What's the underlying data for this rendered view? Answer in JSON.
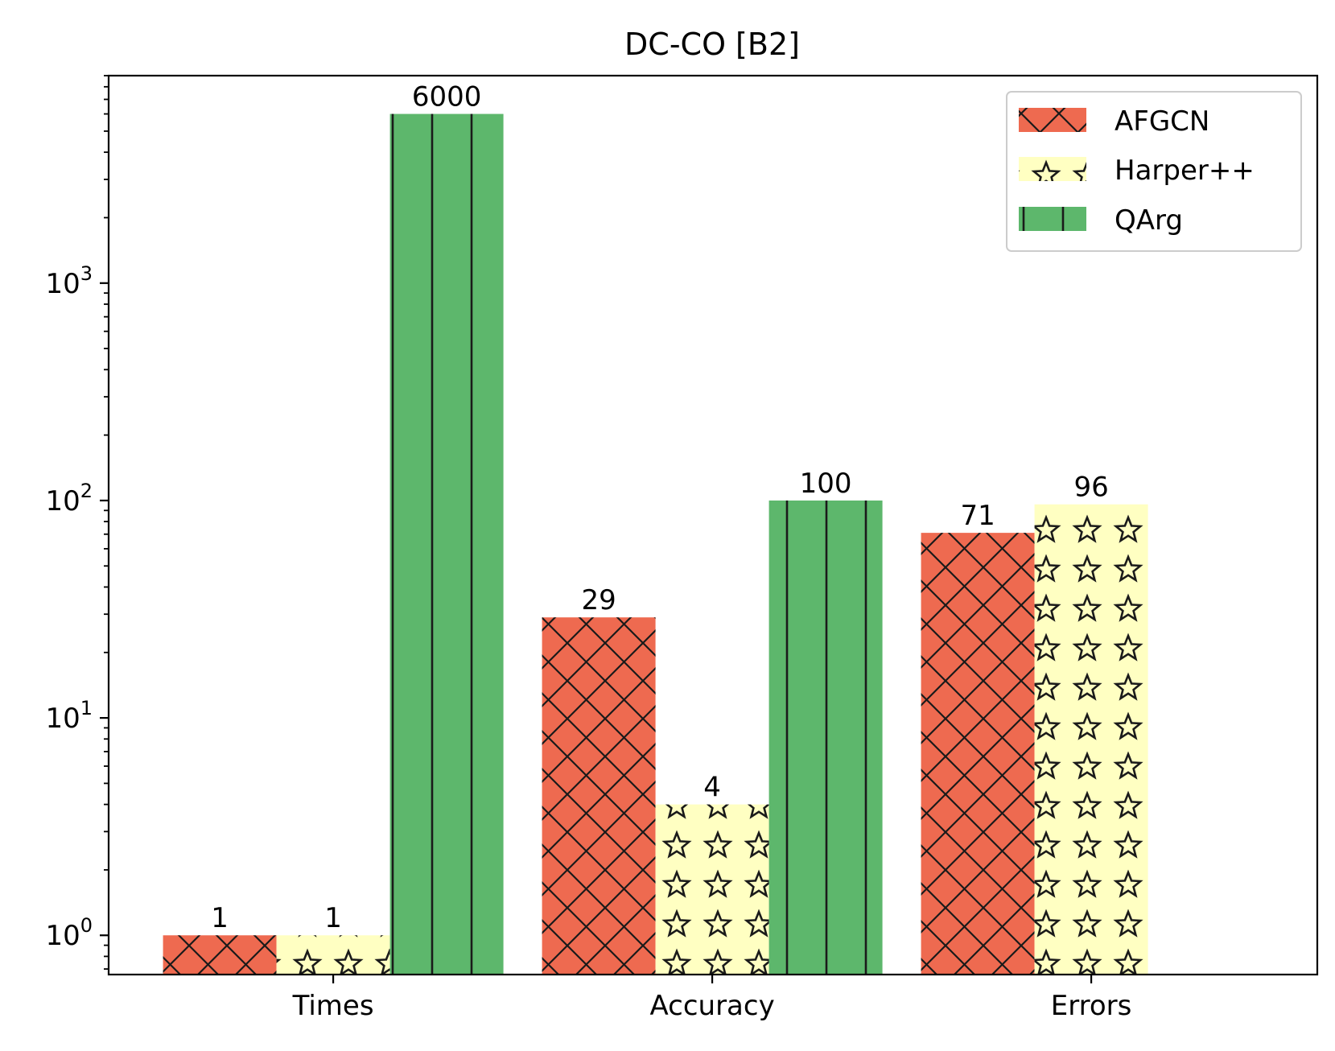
{
  "chart_data": {
    "type": "bar",
    "title": "DC-CO [B2]",
    "xlabel": "",
    "ylabel": "",
    "yscale": "log",
    "ylim": [
      0.66,
      9000
    ],
    "y_ticks": [
      {
        "value": 1,
        "base": "10",
        "exp": "0"
      },
      {
        "value": 10,
        "base": "10",
        "exp": "1"
      },
      {
        "value": 100,
        "base": "10",
        "exp": "2"
      },
      {
        "value": 1000,
        "base": "10",
        "exp": "3"
      }
    ],
    "categories": [
      "Times",
      "Accuracy",
      "Errors"
    ],
    "series": [
      {
        "name": "AFGCN",
        "color": "#ee6a50",
        "pattern": "crosshatch",
        "values": [
          1,
          29,
          71
        ],
        "labels": [
          "1",
          "29",
          "71"
        ]
      },
      {
        "name": "Harper++",
        "color": "#ffffc2",
        "pattern": "stars",
        "values": [
          1,
          4,
          96
        ],
        "labels": [
          "1",
          "4",
          "96"
        ]
      },
      {
        "name": "QArg",
        "color": "#5db76c",
        "pattern": "vertical-lines",
        "values": [
          6000,
          100,
          null
        ],
        "labels": [
          "6000",
          "100",
          null
        ]
      }
    ],
    "legend_position": "top-right",
    "grid": false
  }
}
